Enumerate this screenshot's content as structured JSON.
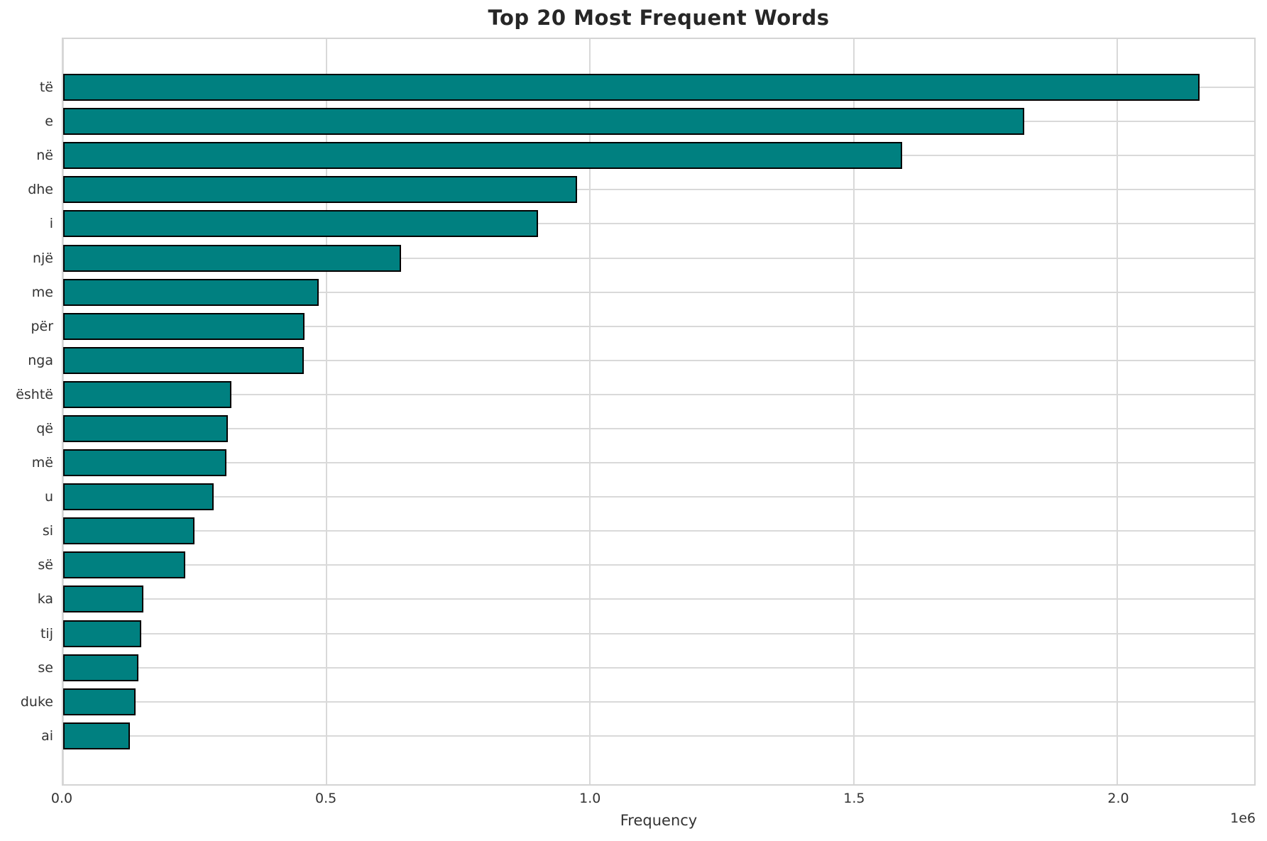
{
  "chart_data": {
    "type": "bar",
    "orientation": "horizontal",
    "title": "Top 20 Most Frequent Words",
    "xlabel": "Frequency",
    "ylabel": "",
    "offset_label": "1e6",
    "categories": [
      "të",
      "e",
      "në",
      "dhe",
      "i",
      "një",
      "me",
      "për",
      "nga",
      "është",
      "që",
      "më",
      "u",
      "si",
      "së",
      "ka",
      "tij",
      "se",
      "duke",
      "ai"
    ],
    "values": [
      2156000,
      1823000,
      1592000,
      975000,
      901000,
      641000,
      485000,
      458000,
      457000,
      319000,
      312000,
      310000,
      285000,
      249000,
      231000,
      152000,
      148000,
      143000,
      138000,
      127000
    ],
    "xlim": [
      0,
      2260000
    ],
    "xticks": [
      0,
      500000,
      1000000,
      1500000,
      2000000
    ],
    "xtick_labels": [
      "0.0",
      "0.5",
      "1.0",
      "1.5",
      "2.0"
    ],
    "grid": true,
    "legend": false,
    "bar_color": "#008080",
    "bar_edge_color": "#000000",
    "grid_color": "#d9d9d9"
  }
}
